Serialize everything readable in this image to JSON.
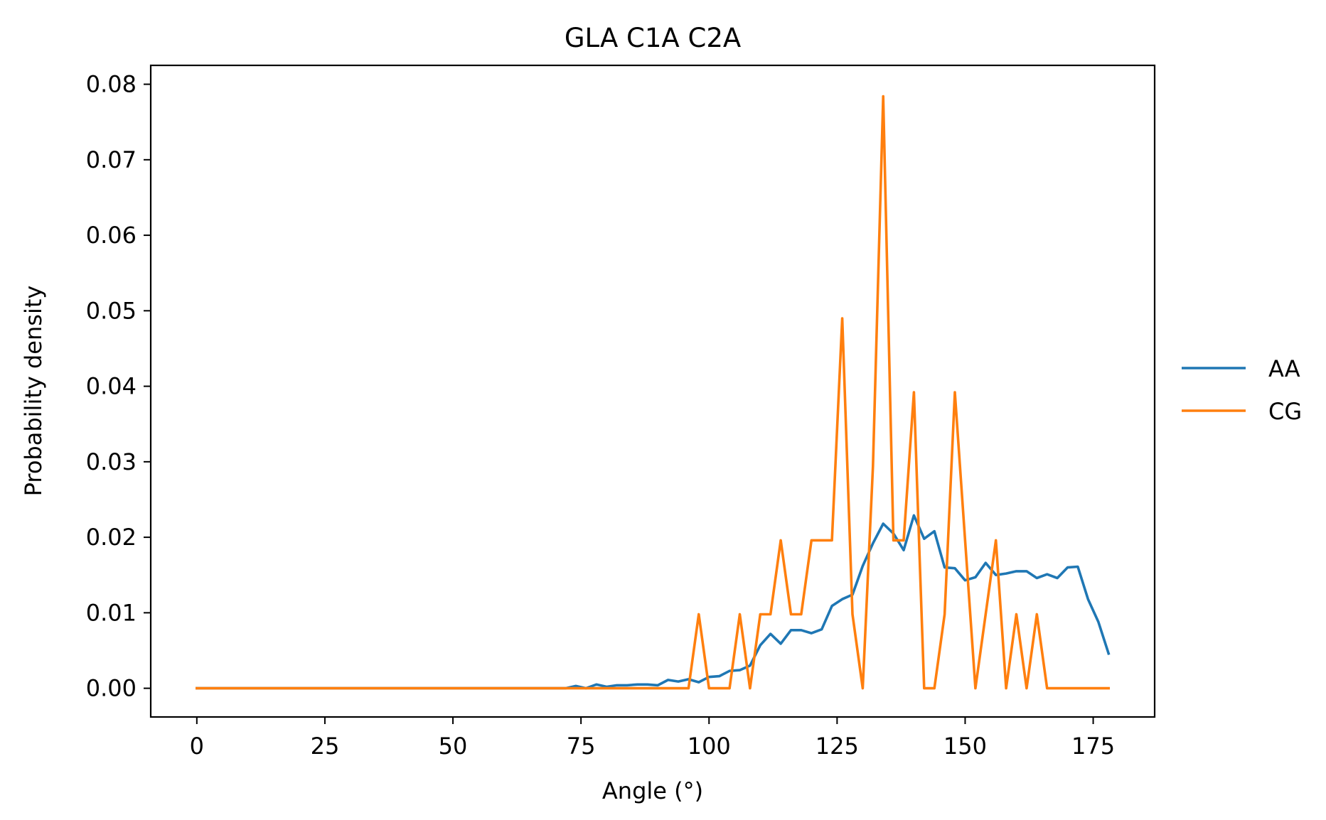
{
  "chart_data": {
    "type": "line",
    "title": "GLA C1A C2A",
    "xlabel": "Angle (°)",
    "ylabel": "Probability density",
    "xlim": [
      -9,
      187
    ],
    "ylim": [
      -0.0038,
      0.0825
    ],
    "xticks": [
      0,
      25,
      50,
      75,
      100,
      125,
      150,
      175
    ],
    "xtick_labels": [
      "0",
      "25",
      "50",
      "75",
      "100",
      "125",
      "150",
      "175"
    ],
    "yticks": [
      0,
      0.01,
      0.02,
      0.03,
      0.04,
      0.05,
      0.06,
      0.07,
      0.08
    ],
    "ytick_labels": [
      "0.00",
      "0.01",
      "0.02",
      "0.03",
      "0.04",
      "0.05",
      "0.06",
      "0.07",
      "0.08"
    ],
    "grid": false,
    "legend_position": "right, outside plot",
    "series": [
      {
        "name": "AA",
        "color": "#1f77b4",
        "x": [
          0,
          72,
          74,
          76,
          78,
          80,
          82,
          84,
          86,
          88,
          90,
          92,
          94,
          96,
          98,
          100,
          102,
          104,
          106,
          108,
          110,
          112,
          114,
          116,
          118,
          120,
          122,
          124,
          126,
          128,
          130,
          132,
          134,
          136,
          138,
          140,
          142,
          144,
          146,
          148,
          150,
          152,
          154,
          156,
          158,
          160,
          162,
          164,
          166,
          168,
          170,
          172,
          174,
          176,
          178
        ],
        "y": [
          0,
          0,
          0.0003,
          0,
          0.0005,
          0.0002,
          0.0004,
          0.0004,
          0.0005,
          0.0005,
          0.0004,
          0.0011,
          0.0009,
          0.0012,
          0.0008,
          0.0015,
          0.0016,
          0.0023,
          0.0024,
          0.003,
          0.0057,
          0.0072,
          0.0059,
          0.0077,
          0.0077,
          0.0073,
          0.0078,
          0.0109,
          0.0118,
          0.0124,
          0.0162,
          0.0192,
          0.0218,
          0.0205,
          0.0183,
          0.0229,
          0.0198,
          0.0208,
          0.016,
          0.0159,
          0.0143,
          0.0147,
          0.0166,
          0.015,
          0.0152,
          0.0155,
          0.0155,
          0.0146,
          0.0151,
          0.0146,
          0.016,
          0.0161,
          0.0118,
          0.0088,
          0.0046
        ]
      },
      {
        "name": "CG",
        "color": "#ff7f0e",
        "x": [
          0,
          96,
          98,
          100,
          102,
          104,
          106,
          108,
          110,
          112,
          114,
          116,
          118,
          120,
          122,
          124,
          126,
          128,
          130,
          132,
          134,
          136,
          138,
          140,
          142,
          144,
          146,
          148,
          150,
          152,
          154,
          156,
          158,
          160,
          162,
          164,
          166,
          168,
          170,
          172,
          174,
          176,
          178
        ],
        "y": [
          0,
          0,
          0.0098,
          0,
          0,
          0,
          0.0098,
          0,
          0.0098,
          0.0098,
          0.0196,
          0.0098,
          0.0098,
          0.0196,
          0.0196,
          0.0196,
          0.049,
          0.0098,
          0,
          0.0294,
          0.0784,
          0.0196,
          0.0196,
          0.0392,
          0,
          0,
          0.0098,
          0.0392,
          0.0196,
          0,
          0.0098,
          0.0196,
          0,
          0.0098,
          0,
          0.0098,
          0,
          0,
          0,
          0,
          0,
          0,
          0
        ]
      }
    ]
  }
}
